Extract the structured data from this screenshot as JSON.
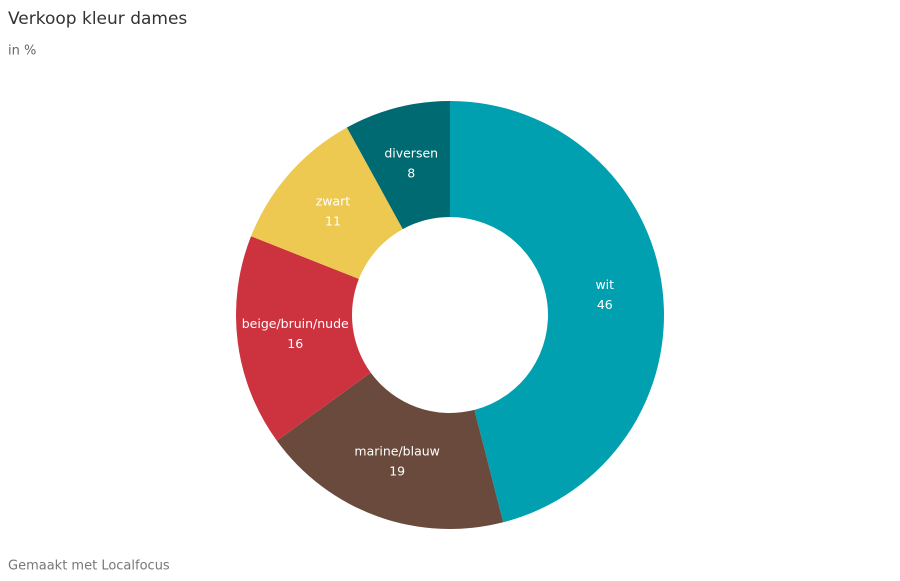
{
  "chart_data": {
    "type": "donut",
    "title": "Verkoop kleur dames",
    "subtitle": "in %",
    "categories": [
      "wit",
      "marine/blauw",
      "beige/bruin/nude",
      "zwart",
      "diversen"
    ],
    "values": [
      46,
      19,
      16,
      11,
      8
    ],
    "colors": [
      "#00a0b0",
      "#6a4a3c",
      "#cc333f",
      "#edc951",
      "#006a73"
    ],
    "credit": "Gemaakt met Localfocus"
  }
}
